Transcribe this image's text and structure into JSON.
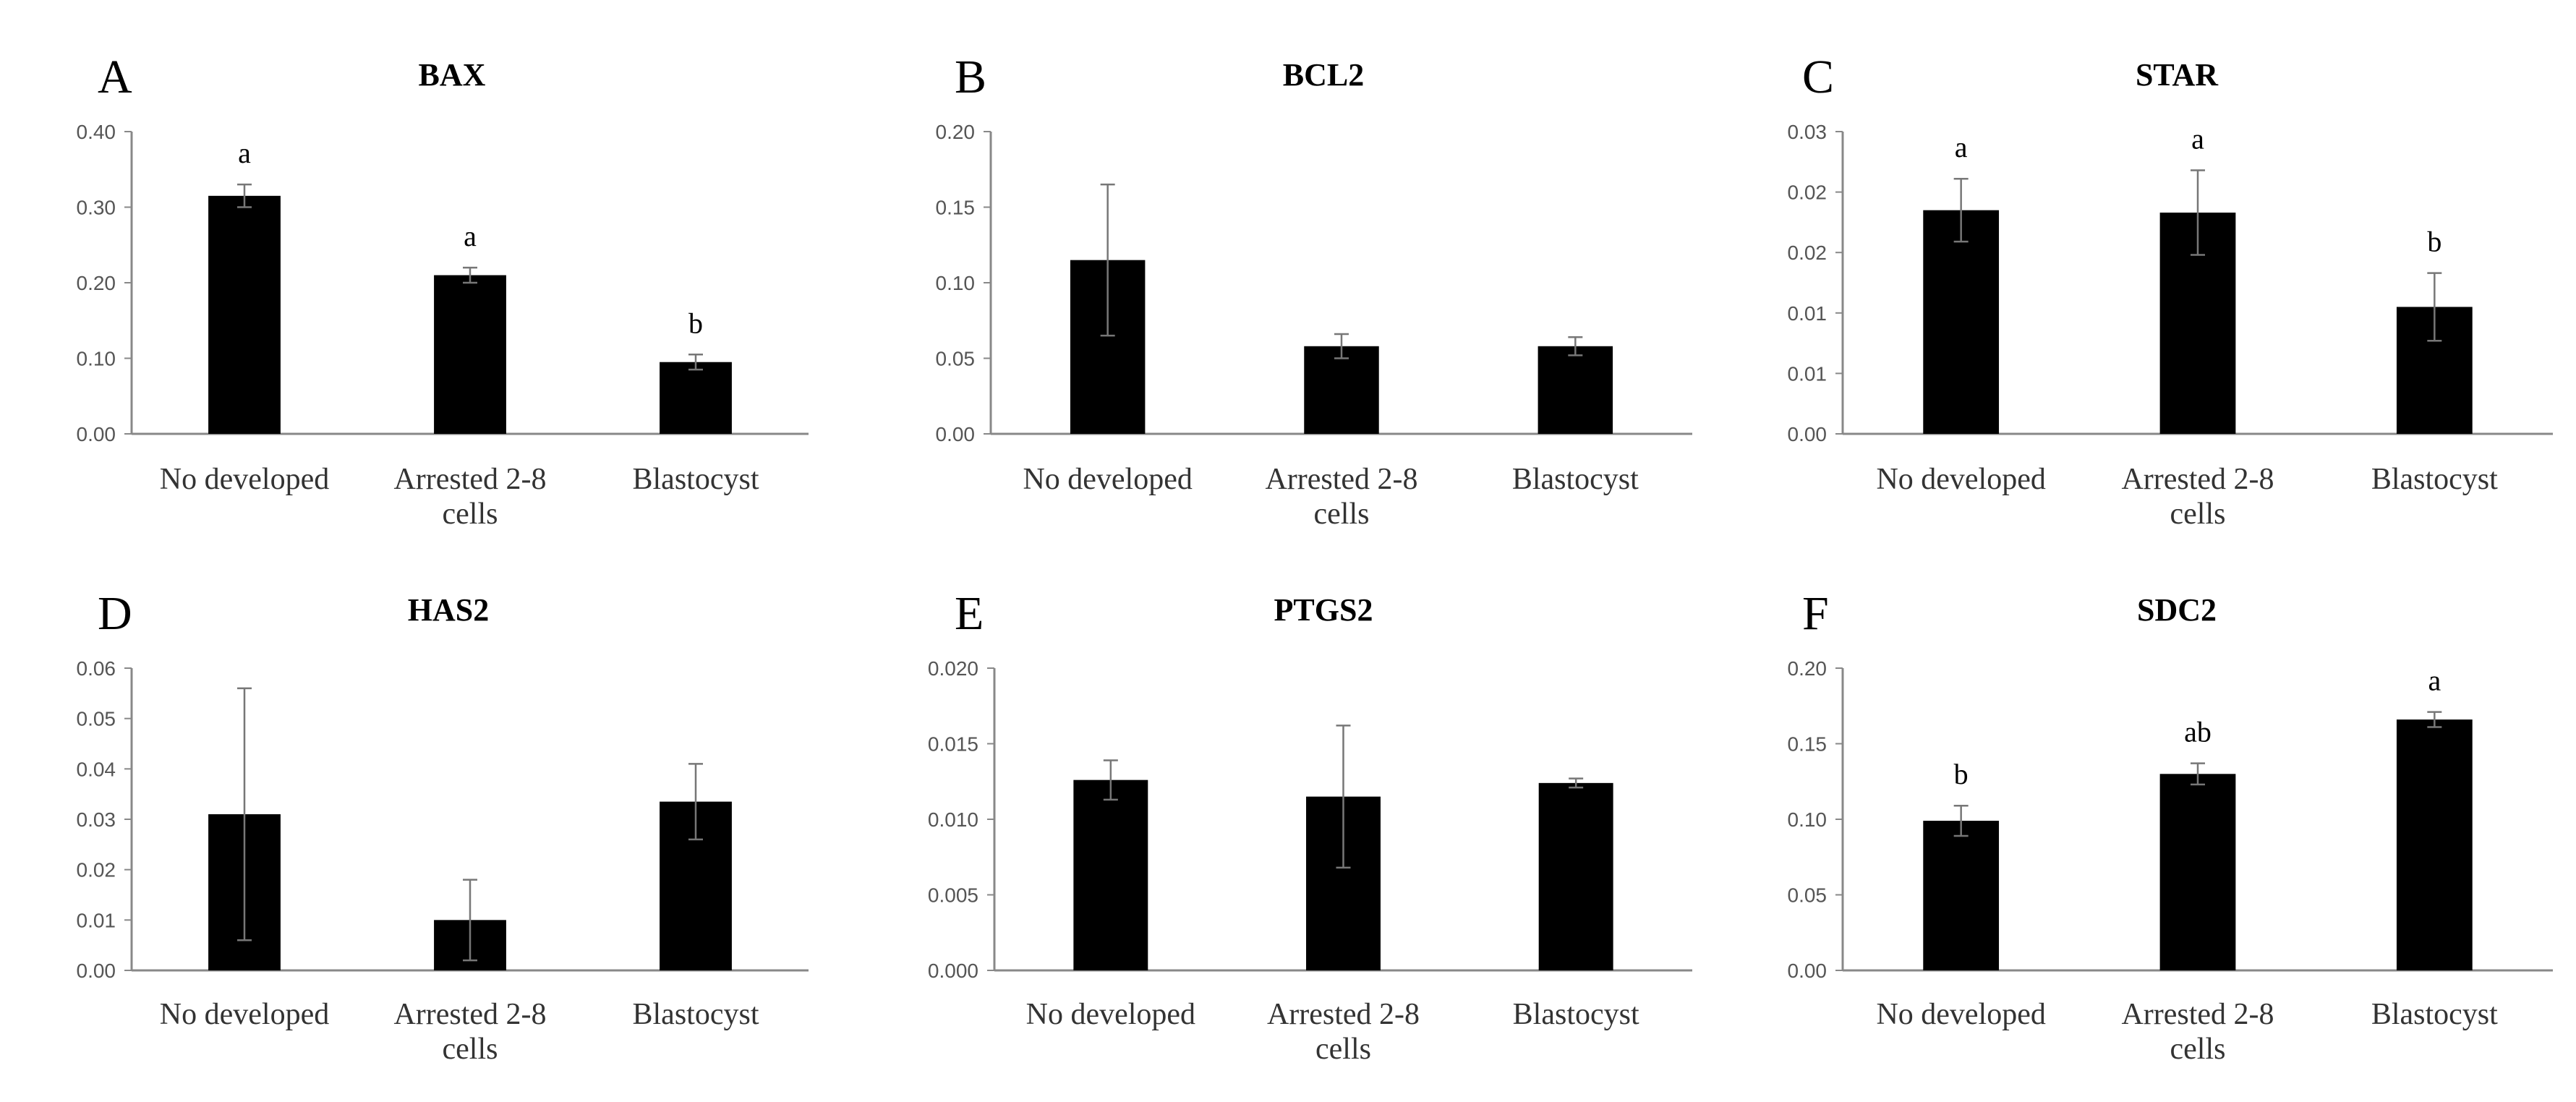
{
  "chart_data": [
    {
      "type": "bar",
      "panel": "A",
      "title": "BAX",
      "categories": [
        "No developed",
        "Arrested 2-8 cells",
        "Blastocyst"
      ],
      "values": [
        0.315,
        0.21,
        0.095
      ],
      "errors": [
        0.015,
        0.01,
        0.01
      ],
      "significance": [
        "a",
        "a",
        "b"
      ],
      "yticks": [
        "0.00",
        "0.10",
        "0.20",
        "0.30",
        "0.40"
      ],
      "ylim": [
        0,
        0.4
      ]
    },
    {
      "type": "bar",
      "panel": "B",
      "title": "BCL2",
      "categories": [
        "No developed",
        "Arrested 2-8 cells",
        "Blastocyst"
      ],
      "values": [
        0.115,
        0.058,
        0.058
      ],
      "errors": [
        0.05,
        0.008,
        0.006
      ],
      "significance": [
        "",
        "",
        ""
      ],
      "yticks": [
        "0.00",
        "0.05",
        "0.10",
        "0.15",
        "0.20"
      ],
      "ylim": [
        0,
        0.2
      ]
    },
    {
      "type": "bar",
      "panel": "C",
      "title": "STAR",
      "categories": [
        "No developed",
        "Arrested 2-8 cells",
        "Blastocyst"
      ],
      "values": [
        0.0185,
        0.0183,
        0.0105
      ],
      "errors": [
        0.0026,
        0.0035,
        0.0028
      ],
      "significance": [
        "a",
        "a",
        "b"
      ],
      "yticks": [
        "0.00",
        "0.01",
        "0.01",
        "0.02",
        "0.02",
        "0.03"
      ],
      "ylim": [
        0,
        0.025
      ]
    },
    {
      "type": "bar",
      "panel": "D",
      "title": "HAS2",
      "categories": [
        "No developed",
        "Arrested 2-8 cells",
        "Blastocyst"
      ],
      "values": [
        0.031,
        0.01,
        0.0335
      ],
      "errors": [
        0.025,
        0.008,
        0.0075
      ],
      "significance": [
        "",
        "",
        ""
      ],
      "yticks": [
        "0.00",
        "0.01",
        "0.02",
        "0.03",
        "0.04",
        "0.05",
        "0.06"
      ],
      "ylim": [
        0,
        0.06
      ]
    },
    {
      "type": "bar",
      "panel": "E",
      "title": "PTGS2",
      "categories": [
        "No developed",
        "Arrested 2-8 cells",
        "Blastocyst"
      ],
      "values": [
        0.0126,
        0.0115,
        0.0124
      ],
      "errors": [
        0.0013,
        0.0047,
        0.0003
      ],
      "significance": [
        "",
        "",
        ""
      ],
      "yticks": [
        "0.000",
        "0.005",
        "0.010",
        "0.015",
        "0.020"
      ],
      "ylim": [
        0,
        0.02
      ]
    },
    {
      "type": "bar",
      "panel": "F",
      "title": "SDC2",
      "categories": [
        "No developed",
        "Arrested 2-8 cells",
        "Blastocyst"
      ],
      "values": [
        0.099,
        0.13,
        0.166
      ],
      "errors": [
        0.01,
        0.007,
        0.005
      ],
      "significance": [
        "b",
        "ab",
        "a"
      ],
      "yticks": [
        "0.00",
        "0.05",
        "0.10",
        "0.15",
        "0.20"
      ],
      "ylim": [
        0,
        0.2
      ]
    }
  ]
}
